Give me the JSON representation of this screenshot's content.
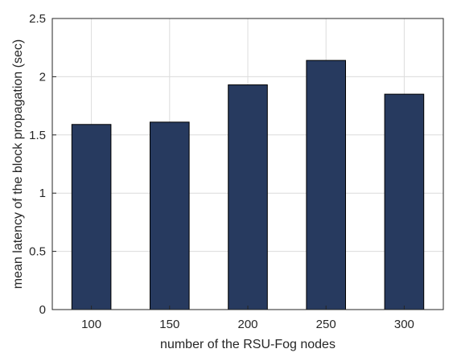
{
  "chart_data": {
    "type": "bar",
    "categories": [
      "100",
      "150",
      "200",
      "250",
      "300"
    ],
    "values": [
      1.59,
      1.61,
      1.93,
      2.14,
      1.85
    ],
    "xlabel": "number of the RSU-Fog nodes",
    "ylabel": "mean latency of the block propagation (sec)",
    "ylim": [
      0,
      2.5
    ],
    "yticks": [
      "0",
      "0.5",
      "1",
      "1.5",
      "2",
      "2.5"
    ],
    "grid": true,
    "bar_color": "#273a5f",
    "bar_edge_color": "#000000",
    "grid_color": "#dcdcdc"
  }
}
